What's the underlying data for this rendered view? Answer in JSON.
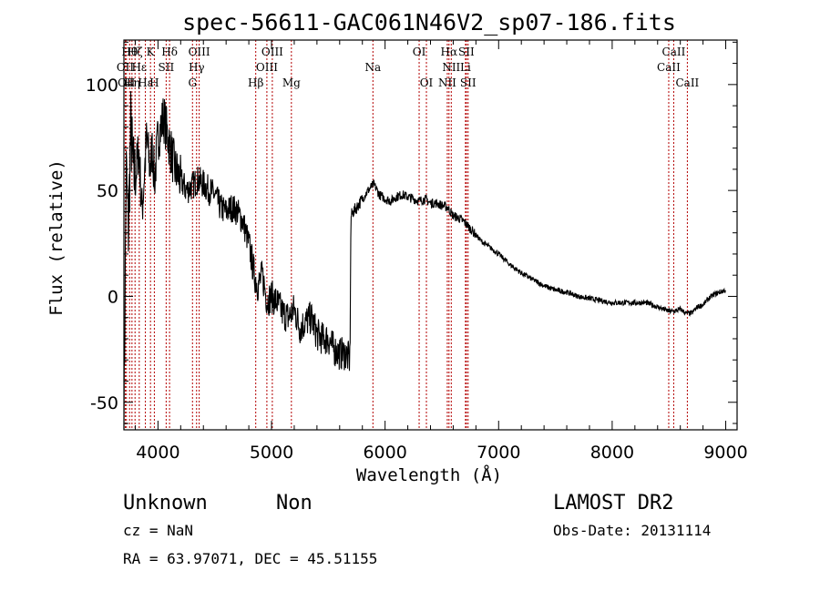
{
  "chart_data": {
    "type": "line",
    "title": "spec-56611-GAC061N46V2_sp07-186.fits",
    "xlabel": "Wavelength (Å)",
    "ylabel": "Flux (relative)",
    "xlim": [
      3700,
      9100
    ],
    "ylim": [
      -63,
      121
    ],
    "xticks": [
      4000,
      5000,
      6000,
      7000,
      8000,
      9000
    ],
    "yticks": [
      -50,
      0,
      50,
      100
    ],
    "grid": false,
    "spectrum_anchors": {
      "x": [
        3700,
        3720,
        3740,
        3760,
        3780,
        3800,
        3830,
        3860,
        3900,
        3930,
        3950,
        3970,
        4000,
        4050,
        4100,
        4150,
        4200,
        4250,
        4300,
        4350,
        4400,
        4450,
        4500,
        4550,
        4600,
        4650,
        4700,
        4750,
        4800,
        4850,
        4880,
        4920,
        4960,
        5000,
        5050,
        5100,
        5150,
        5200,
        5250,
        5300,
        5350,
        5400,
        5450,
        5500,
        5550,
        5600,
        5650,
        5690,
        5700,
        5720,
        5750,
        5800,
        5850,
        5900,
        5950,
        6000,
        6050,
        6100,
        6150,
        6200,
        6250,
        6300,
        6350,
        6400,
        6450,
        6500,
        6550,
        6600,
        6650,
        6700,
        6750,
        6800,
        6850,
        6900,
        6950,
        7000,
        7100,
        7200,
        7300,
        7400,
        7500,
        7600,
        7700,
        7800,
        7900,
        8000,
        8100,
        8200,
        8300,
        8400,
        8450,
        8500,
        8550,
        8600,
        8650,
        8700,
        8750,
        8800,
        8850,
        8900,
        8950,
        9000
      ],
      "y": [
        -60,
        60,
        30,
        80,
        60,
        55,
        70,
        40,
        75,
        60,
        70,
        55,
        75,
        85,
        72,
        60,
        55,
        50,
        52,
        55,
        53,
        50,
        48,
        42,
        40,
        42,
        40,
        35,
        25,
        10,
        5,
        10,
        -2,
        0,
        -3,
        -8,
        -10,
        -6,
        -15,
        -12,
        -10,
        -18,
        -20,
        -20,
        -25,
        -27,
        -27,
        -30,
        38,
        40,
        42,
        46,
        50,
        53,
        48,
        46,
        45,
        47,
        48,
        47,
        46,
        45,
        46,
        44,
        44,
        43,
        42,
        38,
        37,
        35,
        32,
        29,
        26,
        24,
        22,
        20,
        15,
        11,
        8,
        5,
        3,
        2,
        0,
        -1,
        -2,
        -3,
        -3,
        -3,
        -3,
        -5,
        -6,
        -7,
        -7,
        -6,
        -8,
        -8,
        -5,
        -4,
        -1,
        1,
        2,
        3
      ]
    },
    "spectral_lines": [
      {
        "wavelength": 3712,
        "label": "OII",
        "row": 2
      },
      {
        "wavelength": 3722,
        "label": "OII",
        "row": 3
      },
      {
        "wavelength": 3750,
        "label": "Hθ",
        "row": 1
      },
      {
        "wavelength": 3771,
        "label": "Hη",
        "row": 3
      },
      {
        "wavelength": 3798,
        "label": "Hζ",
        "row": 1
      },
      {
        "wavelength": 3835,
        "label": "Hε",
        "row": 2
      },
      {
        "wavelength": 3889,
        "label": "Hε",
        "row": 3
      },
      {
        "wavelength": 3934,
        "label": "K",
        "row": 1
      },
      {
        "wavelength": 3968,
        "label": "H",
        "row": 3
      },
      {
        "wavelength": 4072,
        "label": "SII",
        "row": 2
      },
      {
        "wavelength": 4102,
        "label": "Hδ",
        "row": 1
      },
      {
        "wavelength": 4304,
        "label": "G",
        "row": 3
      },
      {
        "wavelength": 4340,
        "label": "Hγ",
        "row": 2
      },
      {
        "wavelength": 4363,
        "label": "OIII",
        "row": 1
      },
      {
        "wavelength": 4861,
        "label": "Hβ",
        "row": 3
      },
      {
        "wavelength": 4959,
        "label": "OIII",
        "row": 2
      },
      {
        "wavelength": 5007,
        "label": "OIII",
        "row": 1
      },
      {
        "wavelength": 5175,
        "label": "Mg",
        "row": 3
      },
      {
        "wavelength": 5893,
        "label": "Na",
        "row": 2
      },
      {
        "wavelength": 6300,
        "label": "OI",
        "row": 1
      },
      {
        "wavelength": 6364,
        "label": "OI",
        "row": 3
      },
      {
        "wavelength": 6548,
        "label": "NII",
        "row": 3
      },
      {
        "wavelength": 6563,
        "label": "Hα",
        "row": 1
      },
      {
        "wavelength": 6583,
        "label": "NII",
        "row": 2
      },
      {
        "wavelength": 6708,
        "label": "Li",
        "row": 2
      },
      {
        "wavelength": 6716,
        "label": "SII",
        "row": 1
      },
      {
        "wavelength": 6731,
        "label": "SII",
        "row": 3
      },
      {
        "wavelength": 8498,
        "label": "CaII",
        "row": 2
      },
      {
        "wavelength": 8542,
        "label": "CaII",
        "row": 1
      },
      {
        "wavelength": 8662,
        "label": "CaII",
        "row": 3
      }
    ],
    "line_color": "#000000",
    "marker_color": "#b30000"
  },
  "info": {
    "class": "Unknown",
    "subclass": "Non",
    "survey": "LAMOST DR2",
    "cz": "cz = NaN",
    "obs_date": "Obs-Date: 20131114",
    "radec": "RA =  63.97071, DEC =  45.51155"
  }
}
